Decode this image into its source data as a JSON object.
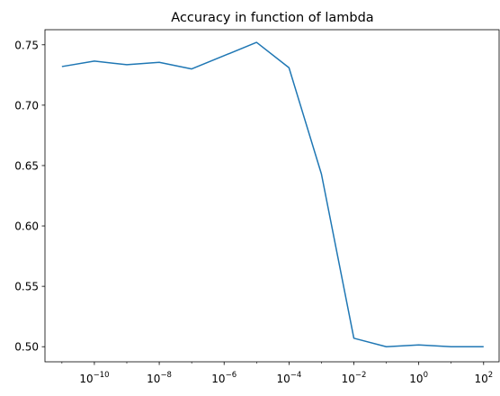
{
  "chart_data": {
    "type": "line",
    "title": "Accuracy in function of lambda",
    "xlabel": "",
    "ylabel": "",
    "x_scale": "log",
    "x_exponents_ticks": [
      "-10",
      "-8",
      "-6",
      "-4",
      "-2",
      "0",
      "2"
    ],
    "x_tick_labels": [
      "10^-10",
      "10^-8",
      "10^-6",
      "10^-4",
      "10^-2",
      "10^0",
      "10^2"
    ],
    "y_ticks": [
      "0.50",
      "0.55",
      "0.60",
      "0.65",
      "0.70",
      "0.75"
    ],
    "xlim": [
      3e-12,
      300.0
    ],
    "ylim": [
      0.4875,
      0.7625
    ],
    "grid": false,
    "legend": "none",
    "series": [
      {
        "color": "#1f77b4",
        "x": [
          1e-11,
          1e-10,
          1e-09,
          1e-08,
          1e-07,
          1e-06,
          1e-05,
          0.0001,
          0.001,
          0.01,
          0.1,
          1,
          10,
          100
        ],
        "y": [
          0.732,
          0.7365,
          0.7335,
          0.7355,
          0.73,
          0.741,
          0.752,
          0.731,
          0.643,
          0.507,
          0.5,
          0.5015,
          0.5,
          0.5
        ]
      }
    ]
  }
}
